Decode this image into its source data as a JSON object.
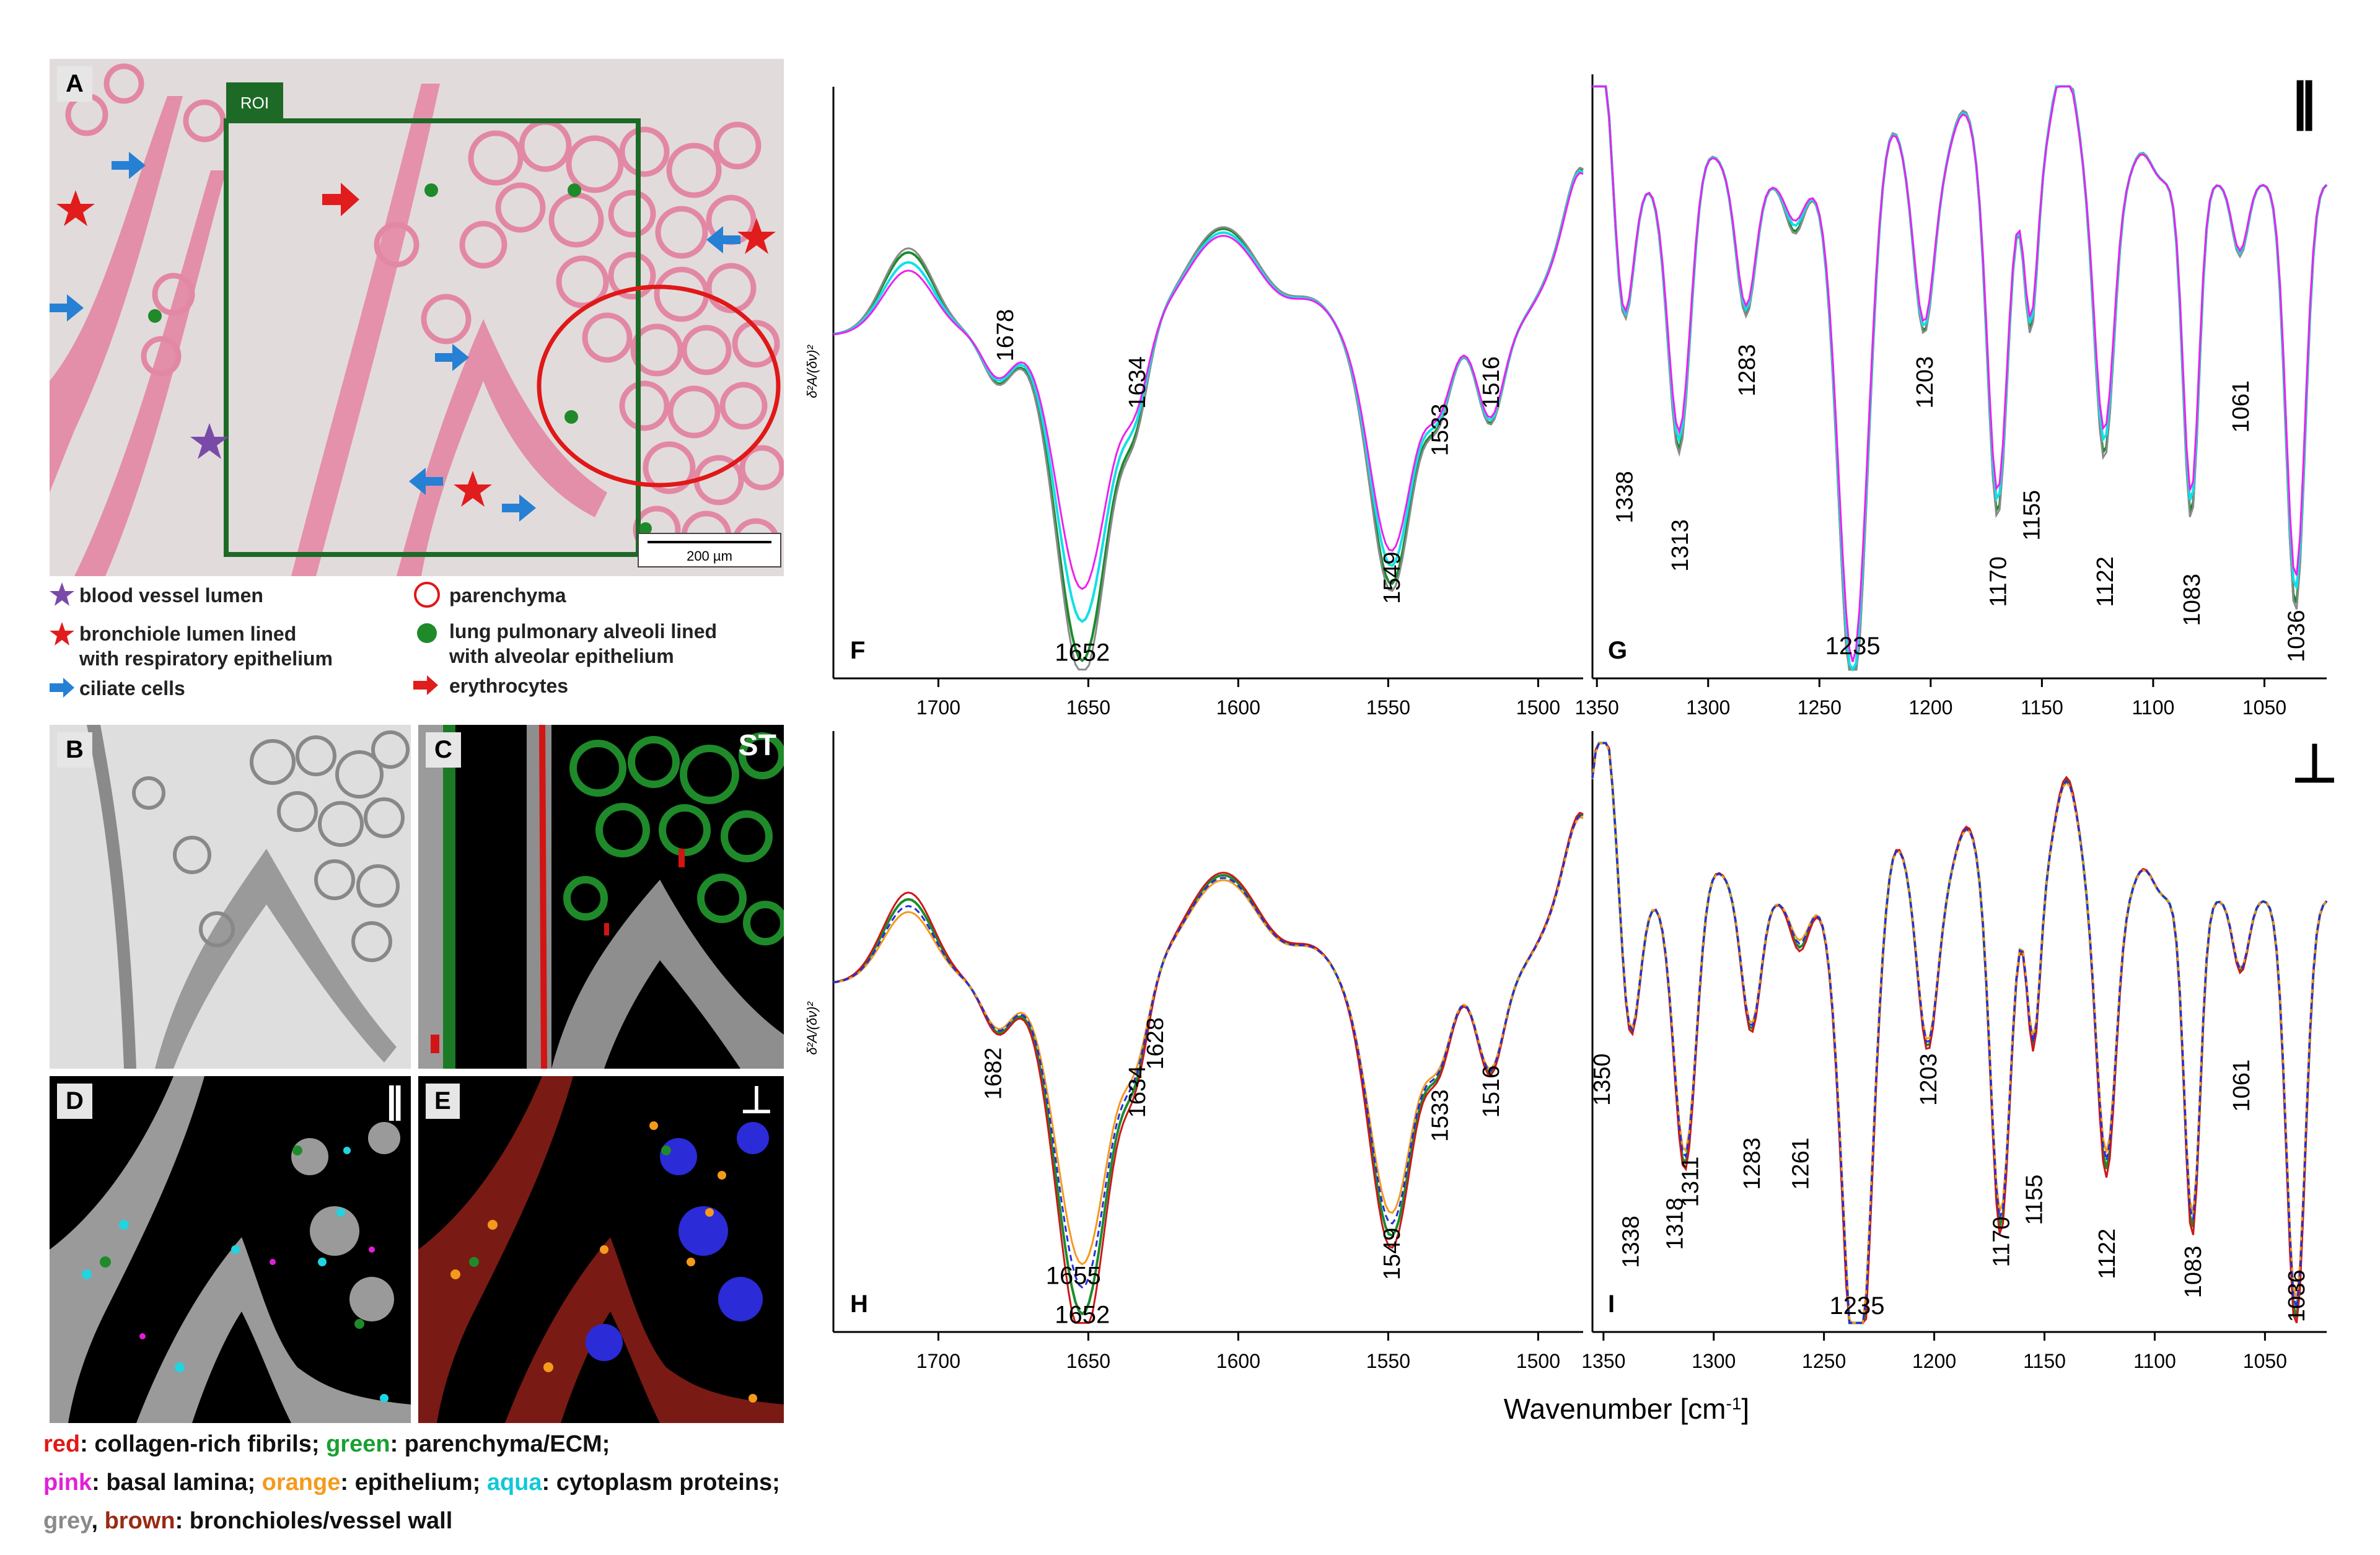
{
  "panels": {
    "A": "A",
    "B": "B",
    "C": "C",
    "D": "D",
    "E": "E",
    "F": "F",
    "G": "G",
    "H": "H",
    "I": "I"
  },
  "roi_label": "ROI",
  "scale_bar_label": "200 µm",
  "st_label": "ST",
  "parallel_symbol": "||",
  "perp_symbol": "⊥",
  "legend_A": {
    "blood_vessel": "blood vessel lumen",
    "bronchiole_1": "bronchiole lumen lined",
    "bronchiole_2": "with respiratory epithelium",
    "ciliate": "ciliate cells",
    "parenchyma": "parenchyma",
    "alveoli_1": "lung pulmonary alveoli lined",
    "alveoli_2": "with alveolar epithelium",
    "erythrocytes": "erythrocytes"
  },
  "color_legend": {
    "red": "red",
    "red_text": ": collagen-rich fibrils; ",
    "green": "green",
    "green_text": ": parenchyma/ECM;",
    "pink": "pink",
    "pink_text": ": basal lamina; ",
    "orange": "orange",
    "orange_text": ": epithelium; ",
    "aqua": "aqua",
    "aqua_text": ": cytoplasm proteins;",
    "grey": "grey",
    "comma": ", ",
    "brown": "brown",
    "brown_text": ": bronchioles/vessel wall"
  },
  "chart_data": [
    {
      "type": "line",
      "panel": "F",
      "xlim": [
        1735,
        1485
      ],
      "xticks": [
        1700,
        1650,
        1600,
        1550,
        1500
      ],
      "ylabel": "δ²A/(δν)²",
      "peak_labels": [
        "1678",
        "1634",
        "1652",
        "1549",
        "1533",
        "1516"
      ]
    },
    {
      "type": "line",
      "panel": "G",
      "xlim": [
        1352,
        1022
      ],
      "xticks": [
        1350,
        1300,
        1250,
        1200,
        1150,
        1100,
        1050
      ],
      "peak_labels": [
        "1338",
        "1313",
        "1283",
        "1235",
        "1203",
        "1170",
        "1155",
        "1122",
        "1083",
        "1061",
        "1036"
      ]
    },
    {
      "type": "line",
      "panel": "H",
      "xlim": [
        1735,
        1485
      ],
      "xticks": [
        1700,
        1650,
        1600,
        1550,
        1500
      ],
      "ylabel": "δ²A/(δν)²",
      "peak_labels": [
        "1682",
        "1634",
        "1628",
        "1655",
        "1652",
        "1549",
        "1533",
        "1516"
      ]
    },
    {
      "type": "line",
      "panel": "I",
      "xlim": [
        1355,
        1022
      ],
      "xticks": [
        1350,
        1300,
        1250,
        1200,
        1150,
        1100,
        1050
      ],
      "peak_labels": [
        "1350",
        "1338",
        "1318",
        "1311",
        "1283",
        "1261",
        "1235",
        "1203",
        "1170",
        "1155",
        "1122",
        "1083",
        "1061",
        "1036"
      ]
    }
  ],
  "xlabel_main": "Wavenumber [cm",
  "xlabel_sup": "-1",
  "xlabel_end": "]",
  "colors": {
    "tissue_pink": "#e58aa6",
    "bg_grey": "#e3dede",
    "roi_green": "#1d6a26",
    "green_series": "#1a8c2c",
    "aqua_series": "#10e0e8",
    "magenta_series": "#ee20ee",
    "grey_series": "#8a8a8a",
    "red_series": "#cc1818",
    "orange_series": "#f59a1a",
    "blue_series": "#2030e0"
  }
}
